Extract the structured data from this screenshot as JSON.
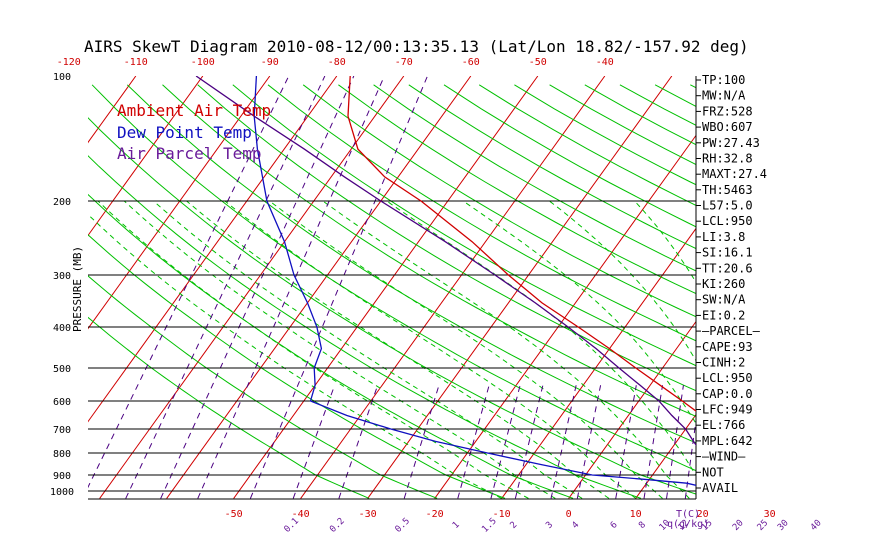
{
  "title": "AIRS SkewT Diagram 2010-08-12/00:13:35.13 (Lat/Lon 18.82/-157.92 deg)",
  "colors": {
    "temp": "#d00000",
    "dewpoint": "#1010c0",
    "parcel": "#4b0082",
    "isotherm": "#d00000",
    "dry_adiabat": "#00c000",
    "moist_adiabat": "#00c000",
    "mixing_ratio": "#4b0082",
    "wind_barb": "#6a1b9a"
  },
  "chart_data": {
    "type": "skewt",
    "title": "AIRS SkewT Diagram 2010-08-12/00:13:35.13 (Lat/Lon 18.82/-157.92 deg)",
    "ylabel": "PRESSURE (MB)",
    "pressure_ticks": [
      "100",
      "200",
      "300",
      "400",
      "500",
      "600",
      "700",
      "800",
      "900",
      "1000"
    ],
    "top_temp_ticks": [
      "-120",
      "-110",
      "-100",
      "-90",
      "-80",
      "-70",
      "-60",
      "-50",
      "-40"
    ],
    "bottom_temp_ticks": [
      "-50",
      "-40",
      "-30",
      "-20",
      "-10",
      "0",
      "10",
      "20",
      "30"
    ],
    "bottom_temp_unit": "T(C)",
    "mixing_ratio_ticks": [
      "0.1",
      "0.2",
      "0.5",
      "1",
      "1.5",
      "2",
      "3",
      "4",
      "6",
      "8",
      "10",
      "12",
      "15",
      "20",
      "25",
      "30",
      "40"
    ],
    "mixing_ratio_unit": "q(g/kg)",
    "legend": [
      {
        "label": "Ambient Air Temp",
        "color": "#d00000"
      },
      {
        "label": "Dew Point Temp",
        "color": "#1010c0"
      },
      {
        "label": "Air Parcel Temp",
        "color": "#6a1b9a"
      }
    ],
    "series": [
      {
        "name": "Ambient Air Temp",
        "points": [
          [
            1000,
            26.0
          ],
          [
            975,
            23.0
          ],
          [
            950,
            21.0
          ],
          [
            925,
            20.0
          ],
          [
            900,
            20.0
          ],
          [
            875,
            20.5
          ],
          [
            850,
            21.0
          ],
          [
            800,
            20.0
          ],
          [
            750,
            18.0
          ],
          [
            700,
            15.0
          ],
          [
            650,
            11.0
          ],
          [
            600,
            6.5
          ],
          [
            550,
            1.5
          ],
          [
            500,
            -4.0
          ],
          [
            450,
            -10.0
          ],
          [
            400,
            -17.0
          ],
          [
            350,
            -25.0
          ],
          [
            300,
            -33.0
          ],
          [
            250,
            -42.0
          ],
          [
            200,
            -54.0
          ],
          [
            175,
            -62.0
          ],
          [
            150,
            -69.0
          ],
          [
            125,
            -74.0
          ],
          [
            100,
            -78.0
          ]
        ]
      },
      {
        "name": "Dew Point Temp",
        "points": [
          [
            1000,
            21.0
          ],
          [
            975,
            19.0
          ],
          [
            950,
            16.0
          ],
          [
            925,
            9.0
          ],
          [
            900,
            1.0
          ],
          [
            850,
            -8.0
          ],
          [
            800,
            -17.0
          ],
          [
            750,
            -26.0
          ],
          [
            700,
            -34.0
          ],
          [
            650,
            -42.0
          ],
          [
            600,
            -49.0
          ],
          [
            550,
            -50.0
          ],
          [
            500,
            -52.0
          ],
          [
            450,
            -53.0
          ],
          [
            400,
            -56.0
          ],
          [
            350,
            -60.0
          ],
          [
            300,
            -65.0
          ],
          [
            250,
            -70.0
          ],
          [
            200,
            -77.0
          ],
          [
            150,
            -84.0
          ],
          [
            125,
            -88.0
          ],
          [
            100,
            -92.0
          ]
        ]
      },
      {
        "name": "Air Parcel Temp",
        "points": [
          [
            1000,
            26.0
          ],
          [
            975,
            23.5
          ],
          [
            950,
            21.0
          ],
          [
            925,
            20.0
          ],
          [
            900,
            19.0
          ],
          [
            850,
            17.0
          ],
          [
            800,
            15.0
          ],
          [
            750,
            12.5
          ],
          [
            700,
            10.0
          ],
          [
            650,
            6.5
          ],
          [
            600,
            3.0
          ],
          [
            550,
            -1.5
          ],
          [
            500,
            -6.5
          ],
          [
            450,
            -12.0
          ],
          [
            400,
            -18.5
          ],
          [
            350,
            -26.0
          ],
          [
            300,
            -35.0
          ],
          [
            250,
            -46.0
          ],
          [
            200,
            -60.0
          ],
          [
            175,
            -68.0
          ],
          [
            150,
            -77.0
          ],
          [
            125,
            -88.0
          ],
          [
            100,
            -101.0
          ]
        ]
      }
    ],
    "indices": [
      "TP:100",
      "MW:N/A",
      "FRZ:528",
      "WBO:607",
      "PW:27.43",
      "RH:32.8",
      "MAXT:27.4",
      "TH:5463",
      "L57:5.0",
      "LCL:950",
      "LI:3.8",
      "SI:16.1",
      "TT:20.6",
      "KI:260",
      "SW:N/A",
      "EI:0.2",
      "—PARCEL—",
      "CAPE:93",
      "CINH:2",
      "LCL:950",
      "CAP:0.0",
      "LFC:949",
      "EL:766",
      "MPL:642",
      "—WIND—",
      "NOT",
      "AVAIL"
    ]
  }
}
